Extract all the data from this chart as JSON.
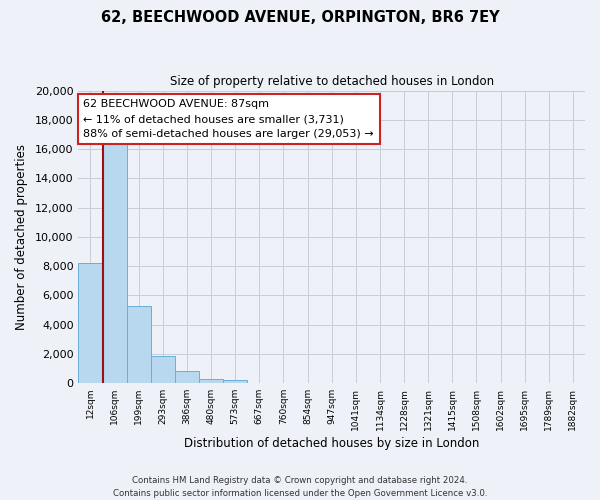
{
  "title": "62, BEECHWOOD AVENUE, ORPINGTON, BR6 7EY",
  "subtitle": "Size of property relative to detached houses in London",
  "xlabel": "Distribution of detached houses by size in London",
  "ylabel": "Number of detached properties",
  "categories": [
    "12sqm",
    "106sqm",
    "199sqm",
    "293sqm",
    "386sqm",
    "480sqm",
    "573sqm",
    "667sqm",
    "760sqm",
    "854sqm",
    "947sqm",
    "1041sqm",
    "1134sqm",
    "1228sqm",
    "1321sqm",
    "1415sqm",
    "1508sqm",
    "1602sqm",
    "1695sqm",
    "1789sqm",
    "1882sqm"
  ],
  "values": [
    8200,
    16600,
    5300,
    1850,
    800,
    280,
    230,
    0,
    0,
    0,
    0,
    0,
    0,
    0,
    0,
    0,
    0,
    0,
    0,
    0,
    0
  ],
  "bar_color": "#b8d8f0",
  "bar_edge_color": "#6aaed6",
  "property_line_color": "#9b1010",
  "annotation_line1": "62 BEECHWOOD AVENUE: 87sqm",
  "annotation_line2": "← 11% of detached houses are smaller (3,731)",
  "annotation_line3": "88% of semi-detached houses are larger (29,053) →",
  "annotation_box_edge": "#cc2222",
  "ylim": [
    0,
    20000
  ],
  "yticks": [
    0,
    2000,
    4000,
    6000,
    8000,
    10000,
    12000,
    14000,
    16000,
    18000,
    20000
  ],
  "footer_line1": "Contains HM Land Registry data © Crown copyright and database right 2024.",
  "footer_line2": "Contains public sector information licensed under the Open Government Licence v3.0.",
  "bg_color": "#eef2f8",
  "plot_bg_color": "#eef2f8",
  "grid_color": "#c5cdd8"
}
